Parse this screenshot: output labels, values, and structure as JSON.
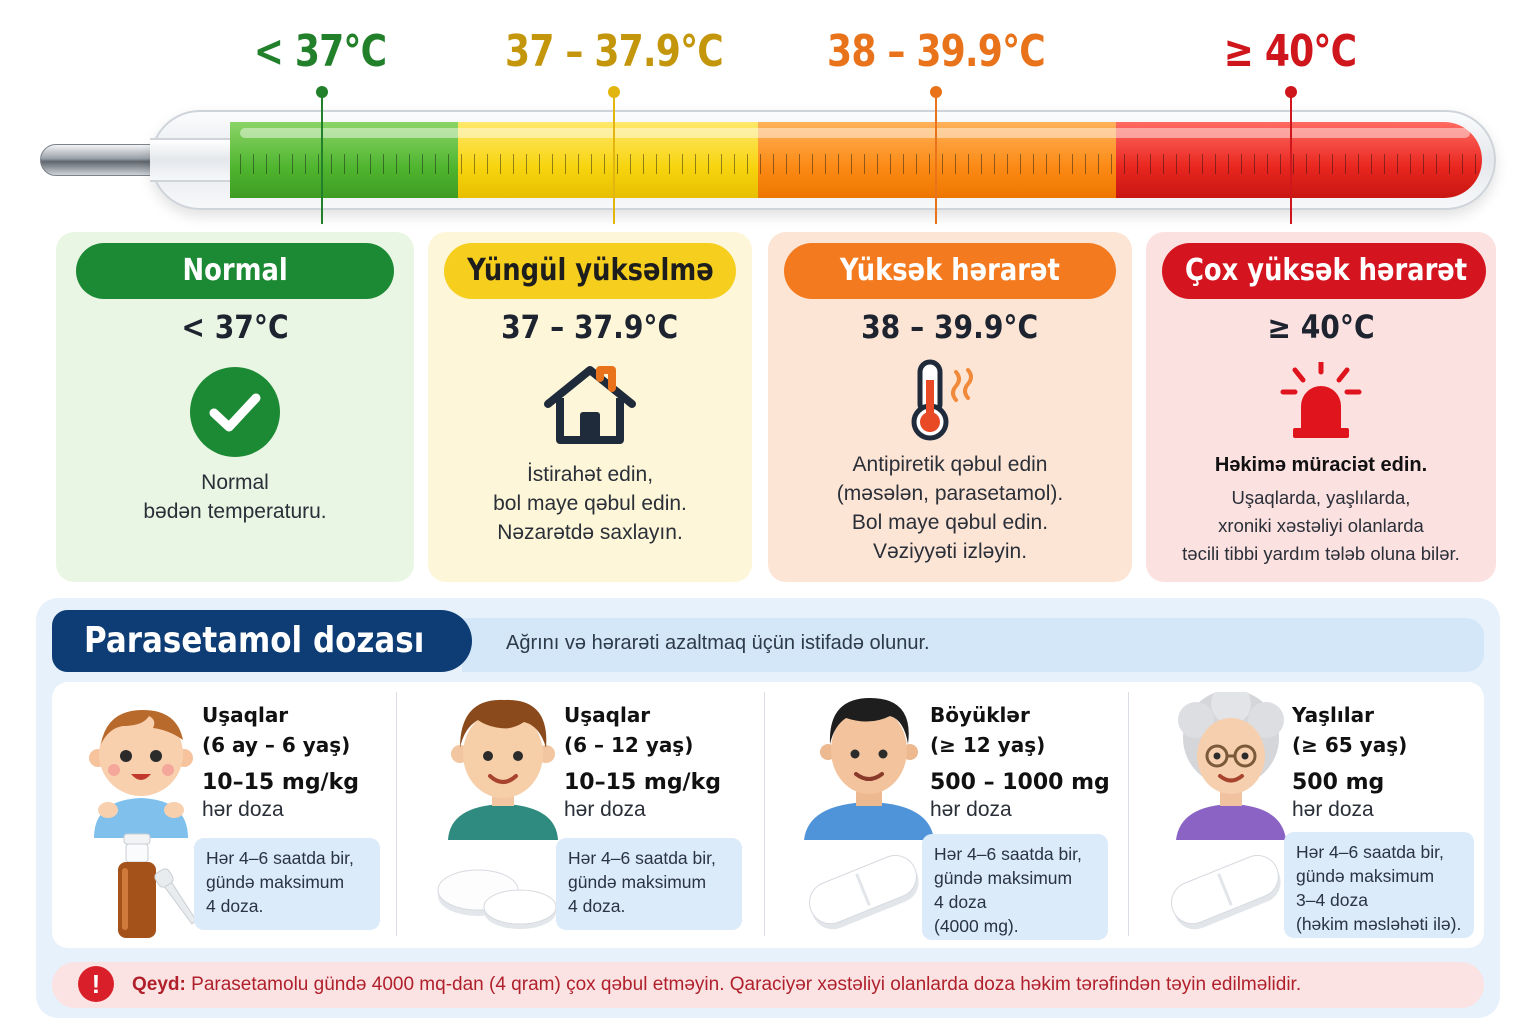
{
  "scale": {
    "labels": [
      {
        "text": "< 37°C",
        "color": "#23802a"
      },
      {
        "text": "37 – 37.9°C",
        "color": "#c3960c"
      },
      {
        "text": "38 – 39.9°C",
        "color": "#e8731a"
      },
      {
        "text": "≥ 40°C",
        "color": "#d0161d"
      }
    ]
  },
  "zones": [
    {
      "title": "Normal",
      "range": "< 37°C",
      "icon": "check-circle-icon",
      "accent": "#1c8a34",
      "lines": [
        "Normal",
        "bədən temperaturu."
      ]
    },
    {
      "title": "Yüngül yüksəlmə",
      "range": "37 – 37.9°C",
      "icon": "house-icon",
      "accent": "#f6cf1e",
      "lines": [
        "İstirahət edin,",
        "bol maye qəbul edin.",
        "Nəzarətdə saxlayın."
      ]
    },
    {
      "title": "Yüksək hərarət",
      "range": "38 – 39.9°C",
      "icon": "thermometer-hot-icon",
      "accent": "#f47a1f",
      "lines": [
        "Antipiretik qəbul edin",
        "(məsələn, parasetamol).",
        "Bol maye qəbul edin.",
        "Vəziyyəti izləyin."
      ]
    },
    {
      "title": "Çox yüksək hərarət",
      "range": "≥ 40°C",
      "icon": "alarm-siren-icon",
      "accent": "#d4141f",
      "strong": "Həkimə müraciət edin.",
      "lines": [
        "Uşaqlarda, yaşlılarda,",
        "xroniki xəstəliyi olanlarda",
        "təcili tibbi yardım tələb oluna bilər."
      ]
    }
  ],
  "dose": {
    "title": "Parasetamol dozası",
    "subtitle": "Ağrını və hərarəti azaltmaq üçün istifadə olunur.",
    "groups": [
      {
        "who_1": "Uşaqlar",
        "who_2": "(6 ay – 6 yaş)",
        "amount": "10–15 mg/kg",
        "per": "hər doza",
        "freq": [
          "Hər 4–6 saatda bir,",
          "gündə maksimum",
          "4 doza."
        ],
        "avatar": "toddler-icon",
        "product": "syrup-bottle-icon"
      },
      {
        "who_1": "Uşaqlar",
        "who_2": "(6 – 12 yaş)",
        "amount": "10–15 mg/kg",
        "per": "hər doza",
        "freq": [
          "Hər 4–6 saatda bir,",
          "gündə maksimum",
          "4 doza."
        ],
        "avatar": "child-icon",
        "product": "round-tablets-icon"
      },
      {
        "who_1": "Böyüklər",
        "who_2": "(≥ 12 yaş)",
        "amount": "500 – 1000 mg",
        "per": "hər doza",
        "freq": [
          "Hər 4–6 saatda bir,",
          "gündə maksimum",
          "4 doza",
          "(4000 mg)."
        ],
        "avatar": "adult-man-icon",
        "product": "caplet-icon"
      },
      {
        "who_1": "Yaşlılar",
        "who_2": "(≥ 65 yaş)",
        "amount": "500 mg",
        "per": "hər doza",
        "freq": [
          "Hər 4–6 saatda bir,",
          "gündə maksimum",
          "3–4 doza",
          "(həkim məsləhəti ilə)."
        ],
        "avatar": "elderly-woman-icon",
        "product": "caplet-icon"
      }
    ]
  },
  "note": {
    "label": "Qeyd:",
    "text": "Parasetamolu gündə 4000 mq-dan (4 qram) çox qəbul etməyin. Qaraciyər xəstəliyi olanlarda doza həkim tərəfindən təyin edilməlidir.",
    "icon_glyph": "!"
  }
}
